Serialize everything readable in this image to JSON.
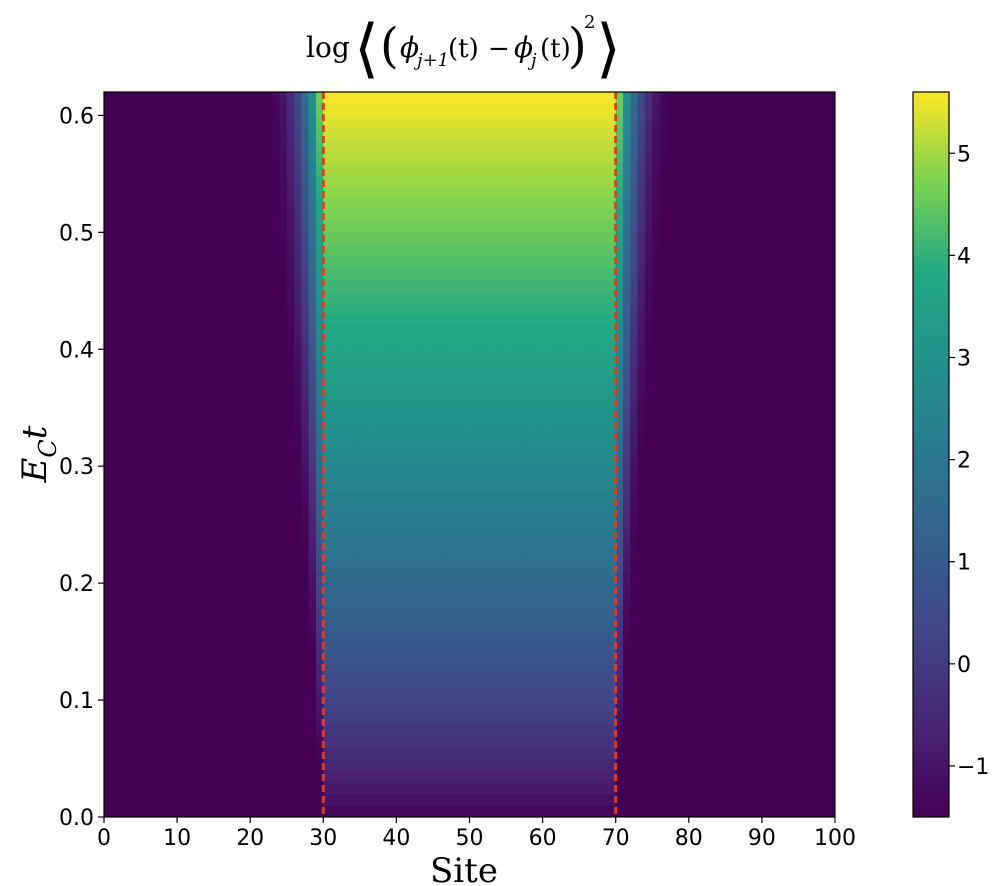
{
  "chart_data": {
    "type": "heatmap",
    "title": "log ⟨(ϕⱼ₊₁(t) − ϕⱼ(t))²⟩",
    "title_parts": {
      "log": "log",
      "phi": "ϕ",
      "sub1": "j+1",
      "sub2": "j",
      "t": "(t)",
      "minus": "−",
      "power": "2"
    },
    "xlabel": "Site",
    "ylabel_main": "E",
    "ylabel_sub": "C",
    "ylabel_tail": "t",
    "xlim": [
      0,
      100
    ],
    "ylim": [
      0,
      0.62
    ],
    "x_ticks": [
      0,
      10,
      20,
      30,
      40,
      50,
      60,
      70,
      80,
      90,
      100
    ],
    "y_ticks": [
      0.0,
      0.1,
      0.2,
      0.3,
      0.4,
      0.5,
      0.6
    ],
    "y_tick_labels": [
      "0.0",
      "0.1",
      "0.2",
      "0.3",
      "0.4",
      "0.5",
      "0.6"
    ],
    "colormap": "viridis",
    "colorbar": {
      "range": [
        -1.5,
        5.6
      ],
      "ticks": [
        -1,
        0,
        1,
        2,
        3,
        4,
        5
      ],
      "tick_labels": [
        "−1",
        "0",
        "1",
        "2",
        "3",
        "4",
        "5"
      ]
    },
    "vlines": [
      {
        "x": 30,
        "color": "#e8381e",
        "style": "dashed"
      },
      {
        "x": 70,
        "color": "#e8381e",
        "style": "dashed"
      }
    ],
    "region": {
      "inner_site_range": [
        30,
        70
      ],
      "value_min": -1.5,
      "value_max": 5.6,
      "edge_spread_sites": 8
    }
  }
}
